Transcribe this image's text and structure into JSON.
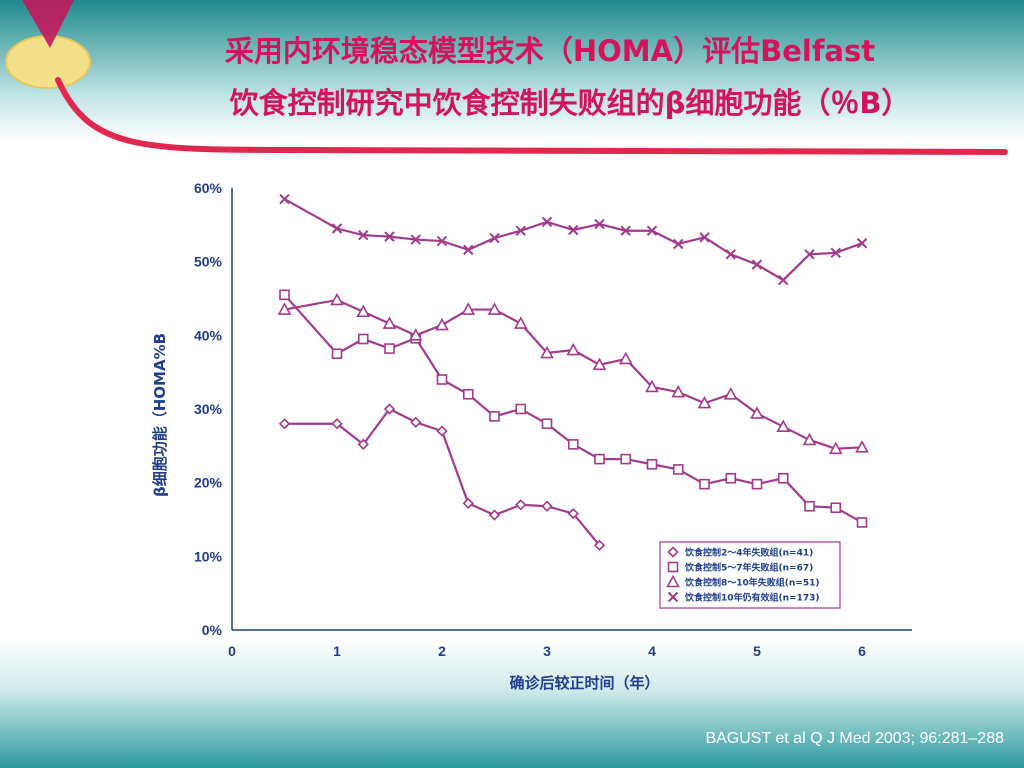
{
  "slide": {
    "title_line1": "采用内环境稳态模型技术（HOMA）评估Belfast",
    "title_line2": "饮食控制研究中饮食控制失败组的β细胞功能（％B）",
    "citation": "BAGUST et al  Q J Med 2003; 96:281–288",
    "colors": {
      "title": "#d4145a",
      "series": "#a33a8c",
      "axis_text": "#1f3d8c",
      "accent_line": "#e0284f"
    }
  },
  "chart_data": {
    "type": "line",
    "xlabel": "确诊后较正时间（年）",
    "ylabel": "β细胞功能（HOMA%B",
    "xlim": [
      0,
      6.5
    ],
    "ylim": [
      0,
      60
    ],
    "x_ticks": [
      "0",
      "1",
      "2",
      "3",
      "4",
      "5",
      "6"
    ],
    "y_ticks": [
      "0%",
      "10%",
      "20%",
      "30%",
      "40%",
      "50%",
      "60%"
    ],
    "grid": false,
    "legend_position": "bottom-right",
    "series": [
      {
        "name": "饮食控制2～4年失败组(n=41)",
        "marker": "diamond",
        "x": [
          0.5,
          1,
          1.25,
          1.5,
          1.75,
          2,
          2.25,
          2.5,
          2.75,
          3,
          3.25,
          3.5
        ],
        "y": [
          28,
          28,
          25.2,
          30,
          28.2,
          27,
          17.2,
          15.6,
          17,
          16.8,
          15.8,
          11.5
        ]
      },
      {
        "name": "饮食控制5～7年失败组(n=67)",
        "marker": "square",
        "x": [
          0.5,
          1,
          1.25,
          1.5,
          1.75,
          2,
          2.25,
          2.5,
          2.75,
          3,
          3.25,
          3.5,
          3.75,
          4,
          4.25,
          4.5,
          4.75,
          5,
          5.25,
          5.5,
          5.75,
          6
        ],
        "y": [
          45.5,
          37.5,
          39.5,
          38.2,
          39.6,
          34,
          32,
          29,
          30,
          28,
          25.2,
          23.2,
          23.2,
          22.5,
          21.8,
          19.8,
          20.6,
          19.8,
          20.6,
          16.8,
          16.6,
          14.6
        ]
      },
      {
        "name": "饮食控制8～10年失败组(n=51)",
        "marker": "triangle",
        "x": [
          0.5,
          1,
          1.25,
          1.5,
          1.75,
          2,
          2.25,
          2.5,
          2.75,
          3,
          3.25,
          3.5,
          3.75,
          4,
          4.25,
          4.5,
          4.75,
          5,
          5.25,
          5.5,
          5.75,
          6
        ],
        "y": [
          43.5,
          44.8,
          43.2,
          41.6,
          40,
          41.4,
          43.5,
          43.5,
          41.6,
          37.6,
          38,
          36,
          36.8,
          33,
          32.3,
          30.8,
          32,
          29.4,
          27.6,
          25.8,
          24.6,
          24.8
        ]
      },
      {
        "name": "饮食控制10年仍有效组(n=173)",
        "marker": "x",
        "x": [
          0.5,
          1,
          1.25,
          1.5,
          1.75,
          2,
          2.25,
          2.5,
          2.75,
          3,
          3.25,
          3.5,
          3.75,
          4,
          4.25,
          4.5,
          4.75,
          5,
          5.25,
          5.5,
          5.75,
          6
        ],
        "y": [
          58.5,
          54.5,
          53.6,
          53.4,
          53,
          52.8,
          51.6,
          53.2,
          54.2,
          55.4,
          54.3,
          55.1,
          54.2,
          54.2,
          52.4,
          53.3,
          51,
          49.6,
          47.5,
          51,
          51.2,
          52.5
        ]
      }
    ]
  }
}
